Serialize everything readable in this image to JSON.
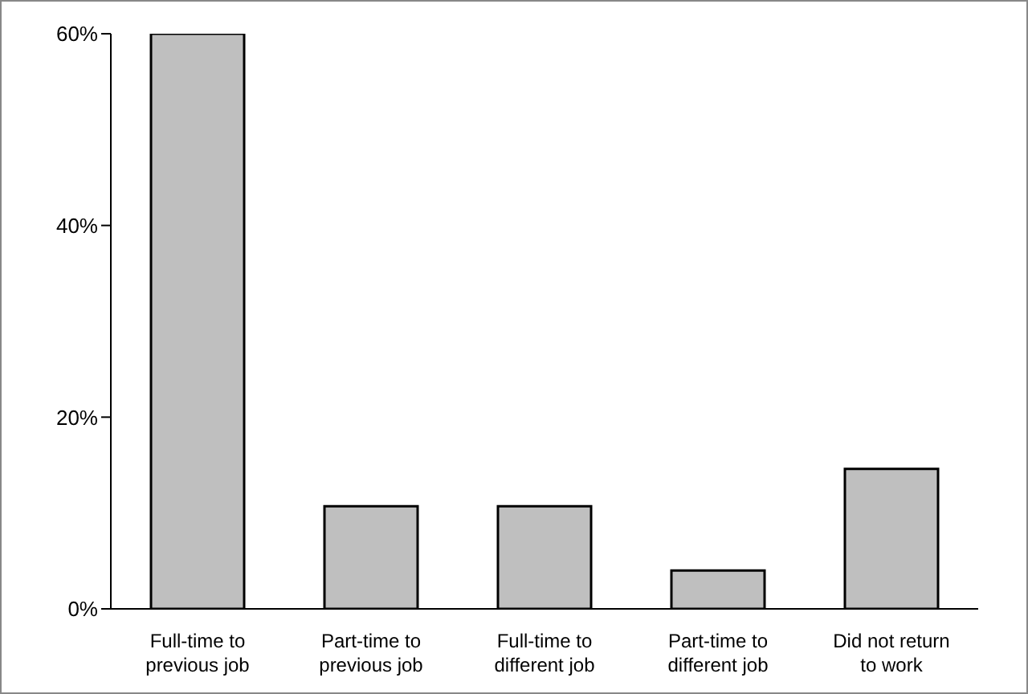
{
  "chart_data": {
    "type": "bar",
    "categories": [
      "Full-time to previous job",
      "Part-time to previous job",
      "Full-time to different job",
      "Part-time to different job",
      "Did not return to work"
    ],
    "values": [
      60,
      10.7,
      10.7,
      4,
      14.6
    ],
    "color": "#bfbfbf",
    "ylim": [
      0,
      60
    ],
    "yticks": [
      {
        "value": 0,
        "label": "0%"
      },
      {
        "value": 20,
        "label": "20%"
      },
      {
        "value": 40,
        "label": "40%"
      },
      {
        "value": 60,
        "label": "60%"
      }
    ],
    "grid": false,
    "legend": false
  }
}
